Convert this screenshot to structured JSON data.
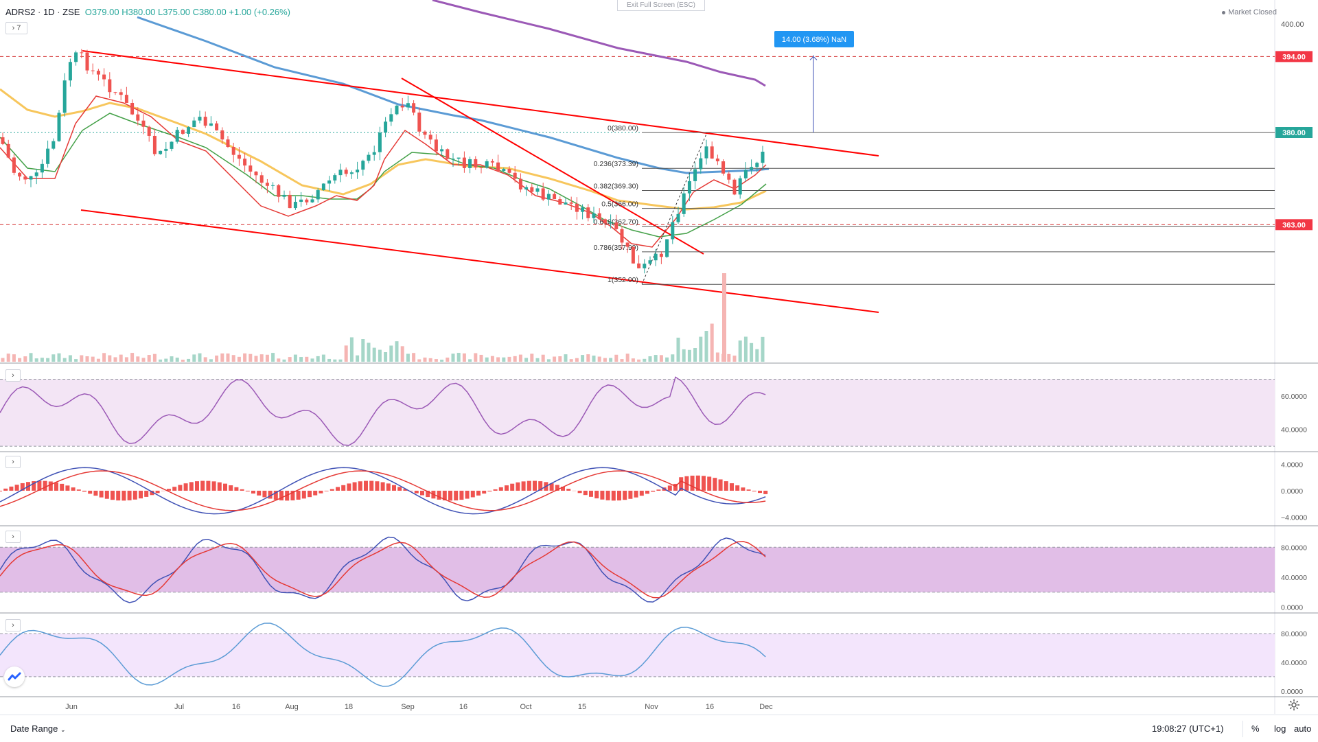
{
  "header": {
    "symbol": "ADRS2",
    "interval": "1D",
    "exchange": "ZSE",
    "open": "O379.00",
    "high": "H380.00",
    "low": "L375.00",
    "close": "C380.00",
    "change": "+1.00 (+0.26%)",
    "indicator_count": "7"
  },
  "exit_fullscreen": "Exit Full Screen (ESC)",
  "market_status": "Market Closed",
  "measure_label": "14.00 (3.68%) NaN",
  "price_axis": {
    "ticks": [
      "400.00"
    ],
    "badges": [
      {
        "text": "394.00",
        "color": "#f23645"
      },
      {
        "text": "380.00",
        "color": "#26a69a"
      },
      {
        "text": "363.00",
        "color": "#f23645"
      }
    ]
  },
  "fib_levels": [
    "0(380.00)",
    "0.236(373.39)",
    "0.382(369.30)",
    "0.5(366.00)",
    "0.618(362.70)",
    "0.786(357.99)",
    "1(352.00)"
  ],
  "pane_axes": {
    "rsi": [
      "60.0000",
      "40.0000"
    ],
    "macd": [
      "4.0000",
      "0.0000",
      "−4.0000"
    ],
    "stoch": [
      "80.0000",
      "40.0000",
      "0.0000"
    ],
    "stoch_rsi": [
      "80.0000",
      "40.0000",
      "0.0000"
    ]
  },
  "time_axis": [
    "Jun",
    "Jul",
    "16",
    "Aug",
    "18",
    "Sep",
    "16",
    "Oct",
    "15",
    "Nov",
    "16",
    "Dec"
  ],
  "bottom_bar": {
    "date_range": "Date Range",
    "clock": "19:08:27 (UTC+1)",
    "percent": "%",
    "log": "log",
    "auto": "auto"
  },
  "colors": {
    "up": "#26a69a",
    "down": "#ef5350",
    "trend": "#ff0000",
    "ma_blue": "#5b9bd5",
    "ma_purple": "#9b59b6",
    "ma_yellow": "#f7c65c",
    "rsi": "#9b59b6",
    "macd": "#3f51b5",
    "signal": "#e53935"
  },
  "icons": {
    "gear": "gear-icon",
    "logo": "tradingview-logo-icon",
    "chevron": "chevron-right-icon"
  }
}
